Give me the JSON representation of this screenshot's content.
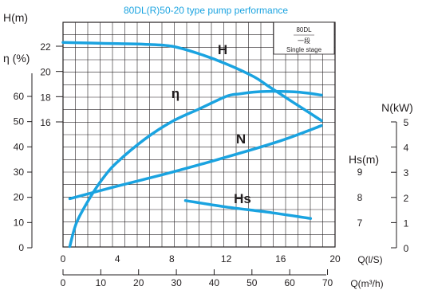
{
  "chart_data": {
    "type": "line",
    "title": "80DL(R)50-20 type pump performance",
    "legend_box": [
      "80DL",
      "一段",
      "Single stage"
    ],
    "curve_color": "#1aa3e0",
    "x_primary": {
      "label": "Q(l/S)",
      "ticks": [
        0,
        4,
        8,
        12,
        16,
        20
      ],
      "range": [
        0,
        20
      ]
    },
    "x_secondary": {
      "label": "Q(m³/h)",
      "ticks": [
        0,
        10,
        20,
        30,
        40,
        50,
        60,
        70
      ],
      "range": [
        0,
        72
      ]
    },
    "y_axes": {
      "H": {
        "label": "H(m)",
        "ticks": [
          16,
          18,
          20,
          22
        ],
        "range": [
          16,
          22
        ]
      },
      "eta": {
        "label": "η (%)",
        "ticks": [
          0,
          10,
          20,
          30,
          40,
          50,
          60
        ],
        "range": [
          0,
          60
        ]
      },
      "Hs": {
        "label": "Hs(m)",
        "ticks": [
          7,
          8,
          9
        ],
        "range": [
          7,
          9
        ]
      },
      "N": {
        "label": "N(kW)",
        "ticks": [
          0,
          1,
          2,
          3,
          4,
          5
        ],
        "range": [
          0,
          5
        ]
      }
    },
    "series": [
      {
        "name": "H",
        "axis": "H",
        "x": [
          0,
          2,
          4,
          6,
          8,
          10,
          12,
          14,
          15,
          16,
          17,
          18,
          19
        ],
        "y": [
          22.3,
          22.25,
          22.2,
          22.15,
          22.0,
          21.4,
          20.6,
          19.6,
          18.9,
          18.2,
          17.5,
          16.8,
          16.1
        ]
      },
      {
        "name": "η",
        "axis": "eta",
        "x": [
          0.5,
          1,
          2,
          3,
          4,
          6,
          8,
          10,
          12,
          13,
          14,
          15,
          16,
          17,
          18,
          19
        ],
        "y": [
          0.5,
          10,
          20,
          28,
          34,
          43,
          50,
          55,
          60,
          61,
          61.7,
          62,
          62,
          61.8,
          61.3,
          60.5
        ]
      },
      {
        "name": "N",
        "axis": "N",
        "x": [
          0.5,
          4,
          8,
          12,
          16,
          19
        ],
        "y": [
          1.95,
          2.45,
          3.0,
          3.6,
          4.25,
          4.85
        ]
      },
      {
        "name": "Hs",
        "axis": "Hs",
        "x": [
          9,
          12,
          15,
          18.2
        ],
        "y": [
          7.85,
          7.6,
          7.4,
          7.15
        ]
      }
    ],
    "grid": true
  }
}
